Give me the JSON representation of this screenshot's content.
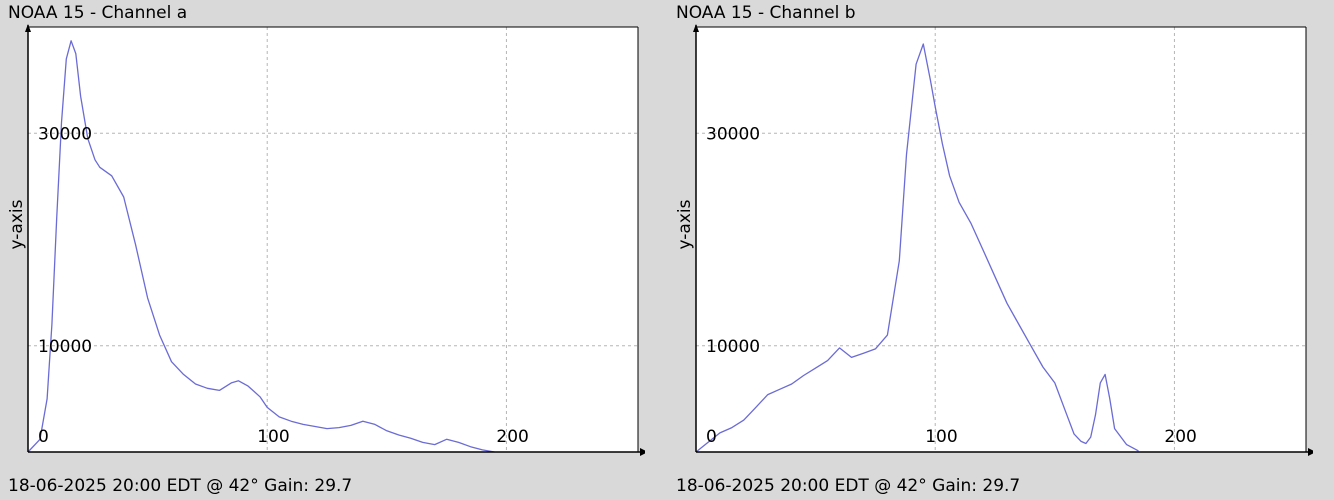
{
  "chart_data": [
    {
      "type": "line",
      "title": "NOAA 15 - Channel a",
      "ylabel": "y-axis",
      "xlabel": "",
      "footer": "18-06-2025 20:00 EDT @ 42° Gain: 29.7",
      "xlim": [
        0,
        255
      ],
      "ylim": [
        0,
        40000
      ],
      "xticks": [
        0,
        100,
        200
      ],
      "yticks": [
        10000,
        30000
      ],
      "grid": true,
      "series": [
        {
          "color": "#6b6bd6",
          "x": [
            0,
            5,
            8,
            10,
            12,
            14,
            16,
            18,
            20,
            22,
            25,
            28,
            30,
            35,
            40,
            45,
            50,
            55,
            60,
            65,
            70,
            75,
            80,
            85,
            88,
            92,
            97,
            100,
            105,
            110,
            115,
            120,
            125,
            130,
            135,
            140,
            145,
            150,
            155,
            160,
            165,
            170,
            175,
            180,
            185,
            190,
            195
          ],
          "y": [
            0,
            1200,
            5000,
            12000,
            22000,
            31000,
            37000,
            38700,
            37500,
            33500,
            29500,
            27500,
            26800,
            26000,
            24000,
            19500,
            14500,
            11000,
            8500,
            7300,
            6400,
            6000,
            5800,
            6500,
            6700,
            6200,
            5200,
            4200,
            3300,
            2900,
            2600,
            2400,
            2200,
            2300,
            2500,
            2900,
            2600,
            2000,
            1600,
            1300,
            900,
            700,
            1200,
            900,
            500,
            200,
            0
          ]
        }
      ]
    },
    {
      "type": "line",
      "title": "NOAA 15 - Channel b",
      "ylabel": "y-axis",
      "xlabel": "",
      "footer": "18-06-2025 20:00 EDT @ 42° Gain: 29.7",
      "xlim": [
        0,
        255
      ],
      "ylim": [
        0,
        40000
      ],
      "xticks": [
        0,
        100,
        200
      ],
      "yticks": [
        10000,
        30000
      ],
      "grid": true,
      "series": [
        {
          "color": "#6b6bd6",
          "x": [
            0,
            5,
            10,
            15,
            20,
            25,
            30,
            35,
            40,
            45,
            50,
            55,
            60,
            65,
            70,
            75,
            80,
            85,
            88,
            92,
            95,
            98,
            100,
            103,
            106,
            110,
            115,
            120,
            125,
            130,
            135,
            140,
            145,
            150,
            155,
            158,
            161,
            163,
            165,
            167,
            169,
            171,
            173,
            175,
            180,
            185
          ],
          "y": [
            0,
            900,
            1800,
            2300,
            3000,
            4200,
            5400,
            5900,
            6400,
            7200,
            7900,
            8600,
            9800,
            8900,
            9300,
            9700,
            11000,
            18000,
            28000,
            36500,
            38400,
            35000,
            32500,
            29000,
            26000,
            23500,
            21500,
            19000,
            16500,
            14000,
            12000,
            10000,
            8000,
            6500,
            3500,
            1700,
            1000,
            800,
            1400,
            3500,
            6500,
            7300,
            5000,
            2200,
            700,
            100
          ]
        }
      ]
    }
  ]
}
